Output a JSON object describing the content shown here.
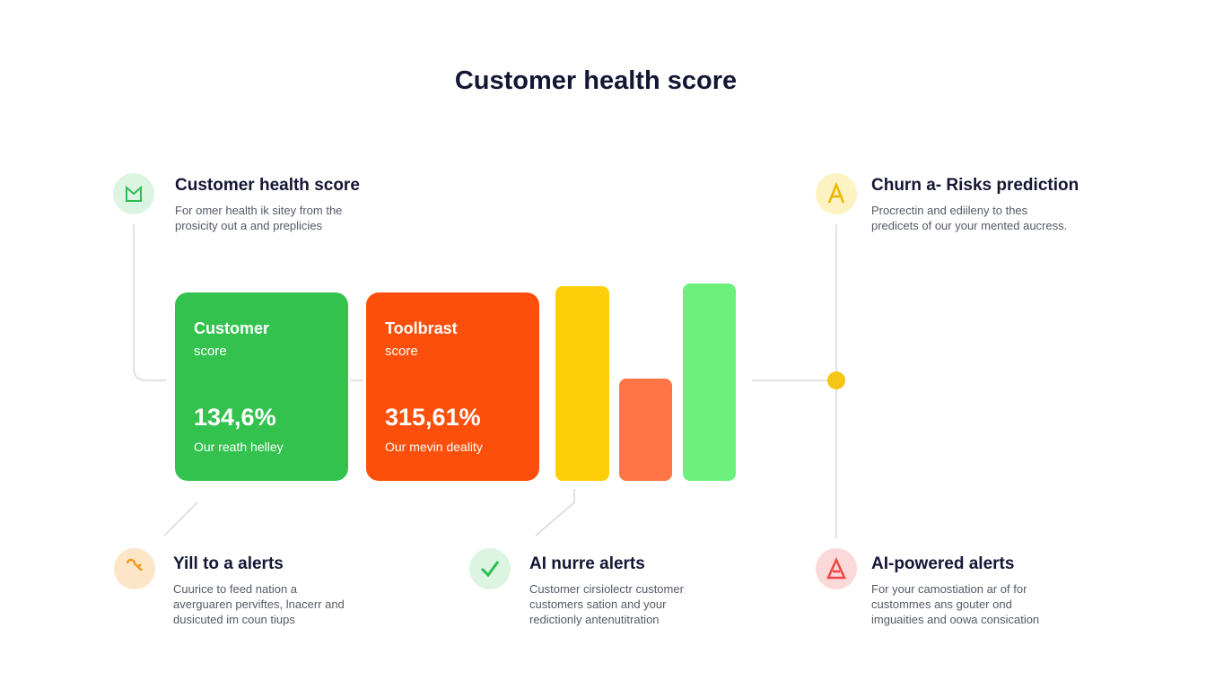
{
  "title": "Customer health score",
  "features": [
    {
      "heading": "Customer health score",
      "text": [
        "For omer health ik sitey from the",
        "prosicity out a and preplicies"
      ]
    },
    {
      "heading": "Churn a- Risks prediction",
      "text": [
        "Procrectin and ediileny to thes",
        "predicets of our your mented aucress."
      ]
    },
    {
      "heading": "Yill to a alerts",
      "text": [
        "Cuurice to feed nation a",
        "averguaren perviftes, lnacerr and",
        "dusicuted im coun tiups"
      ]
    },
    {
      "heading": "AI nurre alerts",
      "text": [
        "Customer cirsiolectr customer",
        "customers sation and your",
        "redictionly antenutitration"
      ]
    },
    {
      "heading": "AI-powered alerts",
      "text": [
        "For your camostiation ar of for",
        "custommes ans gouter ond",
        "imguaities and oowa consication"
      ]
    }
  ],
  "cards": [
    {
      "title": [
        "Customer",
        "score"
      ],
      "value": "134,6%",
      "caption": "Our reath helley"
    },
    {
      "title": [
        "Toolbrast",
        "score"
      ],
      "value": "315,61%",
      "caption": "Our mevin deality"
    }
  ]
}
